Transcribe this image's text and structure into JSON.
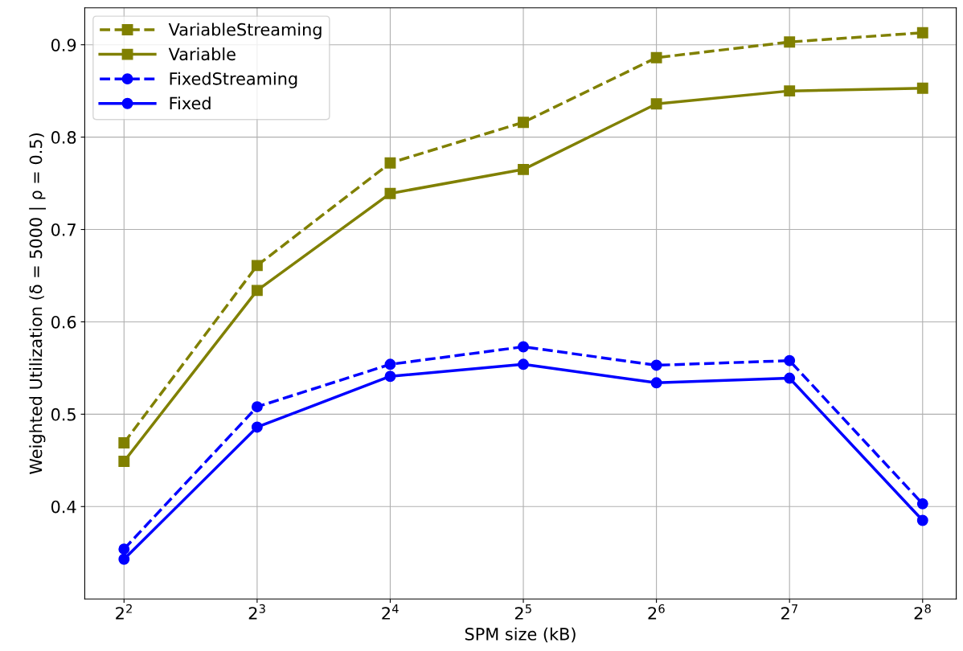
{
  "chart_data": {
    "type": "line",
    "xlabel": "SPM size (kB)",
    "ylabel": "Weighted Utilization (δ = 5000 | ρ = 0.5)",
    "x": [
      4,
      8,
      16,
      32,
      64,
      128,
      256
    ],
    "log": "x",
    "xlim": [
      3.26,
      305
    ],
    "xticks": [
      {
        "value": 4,
        "label": "2$^{2}$"
      },
      {
        "value": 8,
        "label": "2$^{3}$"
      },
      {
        "value": 16,
        "label": "2$^{4}$"
      },
      {
        "value": 32,
        "label": "2$^{5}$"
      },
      {
        "value": 64,
        "label": "2$^{6}$"
      },
      {
        "value": 128,
        "label": "2$^{7}$"
      },
      {
        "value": 256,
        "label": "2$^{8}$"
      }
    ],
    "ylim": [
      0.3,
      0.94
    ],
    "yticks": [
      0.4,
      0.5,
      0.6,
      0.7,
      0.8,
      0.9
    ],
    "grid": true,
    "legend": "top left",
    "series": [
      {
        "name": "VariableStreaming",
        "color": "#808000",
        "marker": "square",
        "line_style": "dashed",
        "values": [
          0.469,
          0.661,
          0.772,
          0.816,
          0.886,
          0.903,
          0.913
        ]
      },
      {
        "name": "Variable",
        "color": "#808000",
        "marker": "square",
        "line_style": "solid",
        "values": [
          0.449,
          0.634,
          0.739,
          0.765,
          0.836,
          0.85,
          0.853
        ]
      },
      {
        "name": "FixedStreaming",
        "color": "#0000ff",
        "marker": "circle",
        "line_style": "dashed",
        "values": [
          0.354,
          0.508,
          0.554,
          0.573,
          0.553,
          0.558,
          0.403
        ]
      },
      {
        "name": "Fixed",
        "color": "#0000ff",
        "marker": "circle",
        "line_style": "solid",
        "values": [
          0.343,
          0.486,
          0.541,
          0.554,
          0.534,
          0.539,
          0.385
        ]
      }
    ]
  }
}
